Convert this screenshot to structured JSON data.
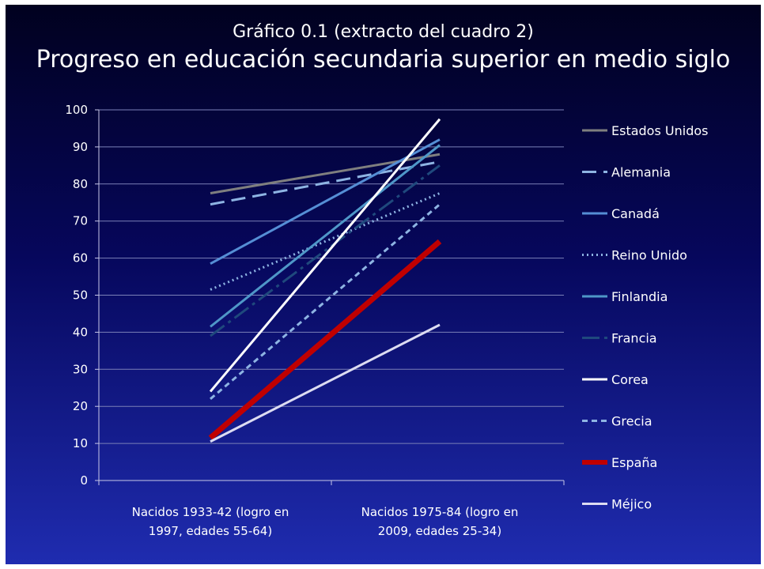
{
  "chart_data": {
    "type": "line",
    "subtitle": "Gráfico 0.1 (extracto del cuadro 2)",
    "title": "Progreso en educación secundaria superior en medio siglo",
    "categories": [
      [
        "Nacidos 1933-42 (logro en",
        "1997, edades 55-64)"
      ],
      [
        "Nacidos 1975-84 (logro en",
        "2009, edades 25-34)"
      ]
    ],
    "ylim": [
      0,
      100
    ],
    "yticks": [
      0,
      10,
      20,
      30,
      40,
      50,
      60,
      70,
      80,
      90,
      100
    ],
    "grid": true,
    "legend": "right",
    "series": [
      {
        "name": "Estados Unidos",
        "values": [
          77.5,
          88
        ],
        "color": "#7f7f7f",
        "dash": "",
        "width": 3
      },
      {
        "name": "Alemania",
        "values": [
          74.5,
          86
        ],
        "color": "#8eb4e3",
        "dash": "18,9",
        "width": 3
      },
      {
        "name": "Canadá",
        "values": [
          58.5,
          92
        ],
        "color": "#558ed5",
        "dash": "",
        "width": 3
      },
      {
        "name": "Reino Unido",
        "values": [
          51.5,
          77.5
        ],
        "color": "#8eb4e3",
        "dash": "2,4",
        "width": 3
      },
      {
        "name": "Finlandia",
        "values": [
          41.5,
          90.5
        ],
        "color": "#4f97c8",
        "dash": "",
        "width": 3
      },
      {
        "name": "Francia",
        "values": [
          39,
          85
        ],
        "color": "#1f497d",
        "dash": "22,6,4,6",
        "width": 3
      },
      {
        "name": "Corea",
        "values": [
          24,
          97.5
        ],
        "color": "#ffffff",
        "dash": "",
        "width": 3
      },
      {
        "name": "Grecia",
        "values": [
          22,
          74.5
        ],
        "color": "#8eb4e3",
        "dash": "7,5",
        "width": 3
      },
      {
        "name": "España",
        "values": [
          11.5,
          64.5
        ],
        "color": "#c00000",
        "dash": "",
        "width": 7
      },
      {
        "name": "Méjico",
        "values": [
          10.5,
          42
        ],
        "color": "#dcdcf2",
        "dash": "",
        "width": 3
      }
    ]
  }
}
